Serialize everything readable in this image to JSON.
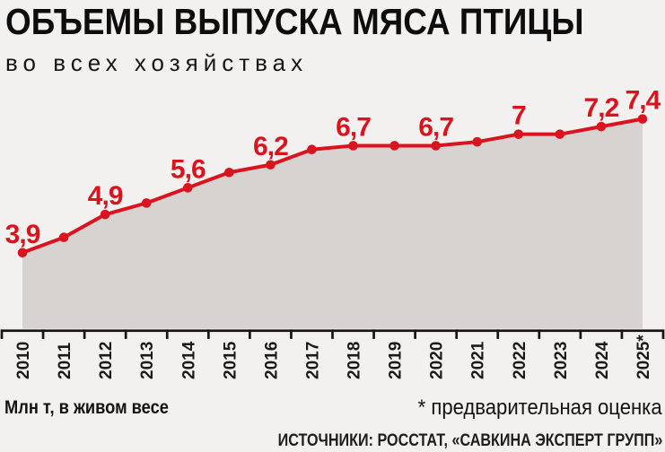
{
  "colors": {
    "background": "#f3f1ef",
    "area_fill": "#d7d3d0",
    "line": "#da141f",
    "point": "#da141f",
    "value_label": "#da141f",
    "axis": "#141414",
    "tick_label": "#1a1a1a",
    "title_text": "#0d0d0d"
  },
  "chart_data": {
    "type": "area",
    "title": "ОБЪЕМЫ ВЫПУСКА МЯСА ПТИЦЫ",
    "subtitle": "во всех хозяйствах",
    "unit": "Млн т, в живом весе",
    "categories": [
      "2010",
      "2011",
      "2012",
      "2013",
      "2014",
      "2015",
      "2016",
      "2017",
      "2018",
      "2019",
      "2020",
      "2021",
      "2022",
      "2023",
      "2024",
      "2025*"
    ],
    "values": [
      3.9,
      4.3,
      4.9,
      5.2,
      5.6,
      6.0,
      6.2,
      6.6,
      6.7,
      6.7,
      6.7,
      6.8,
      7.0,
      7.0,
      7.2,
      7.4
    ],
    "point_labels": [
      "3,9",
      null,
      "4,9",
      null,
      "5,6",
      null,
      "6,2",
      null,
      "6,7",
      null,
      "6,7",
      null,
      "7",
      null,
      "7,2",
      "7,4"
    ],
    "ylim": [
      1.9,
      8.4
    ],
    "grid": false,
    "legend": false,
    "xlabel": "",
    "ylabel": "Млн т, в живом весе"
  },
  "notes": {
    "estimate": "* предварительная оценка",
    "sources": "ИСТОЧНИКИ: РОССТАТ, «САВКИНА ЭКСПЕРТ ГРУПП»"
  }
}
